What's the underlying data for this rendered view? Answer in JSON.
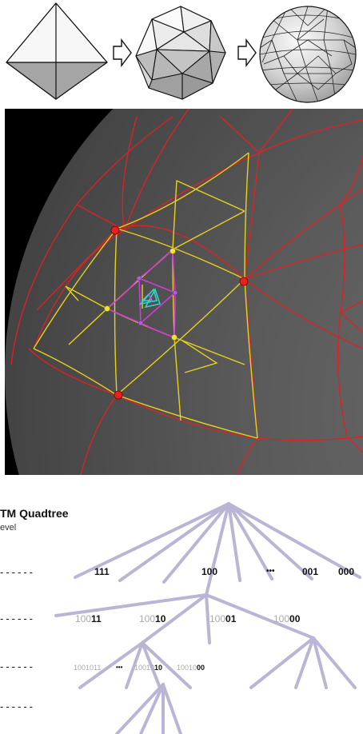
{
  "tree": {
    "title": "TM Quadtree",
    "subtitle": "evel",
    "levels": [
      {
        "dashes": "------",
        "labels": [
          {
            "bold": "111"
          },
          {
            "bold": "100"
          },
          {
            "bold": "•••"
          },
          {
            "bold": "001"
          },
          {
            "bold": "000"
          }
        ]
      },
      {
        "dashes": "------",
        "labels": [
          {
            "grey": "100",
            "bold": "11"
          },
          {
            "grey": "100",
            "bold": "10"
          },
          {
            "grey": "100",
            "bold": "01"
          },
          {
            "grey": "100",
            "bold": "00"
          }
        ]
      },
      {
        "dashes": "------",
        "labels": [
          {
            "grey": "1001011"
          },
          {
            "bold": "•••"
          },
          {
            "grey": "10010",
            "bold": "10"
          },
          {
            "grey": "10010",
            "bold": "00"
          }
        ]
      },
      {
        "dashes": "------",
        "labels": []
      }
    ]
  },
  "colors": {
    "face_light": "#f4f4f4",
    "face_dark": "#a8a8a8",
    "red": "#e82020",
    "yellow": "#e6d21e",
    "magenta": "#d23cd2",
    "cyan": "#34d6d0",
    "tree_line": "#b3aed0"
  }
}
